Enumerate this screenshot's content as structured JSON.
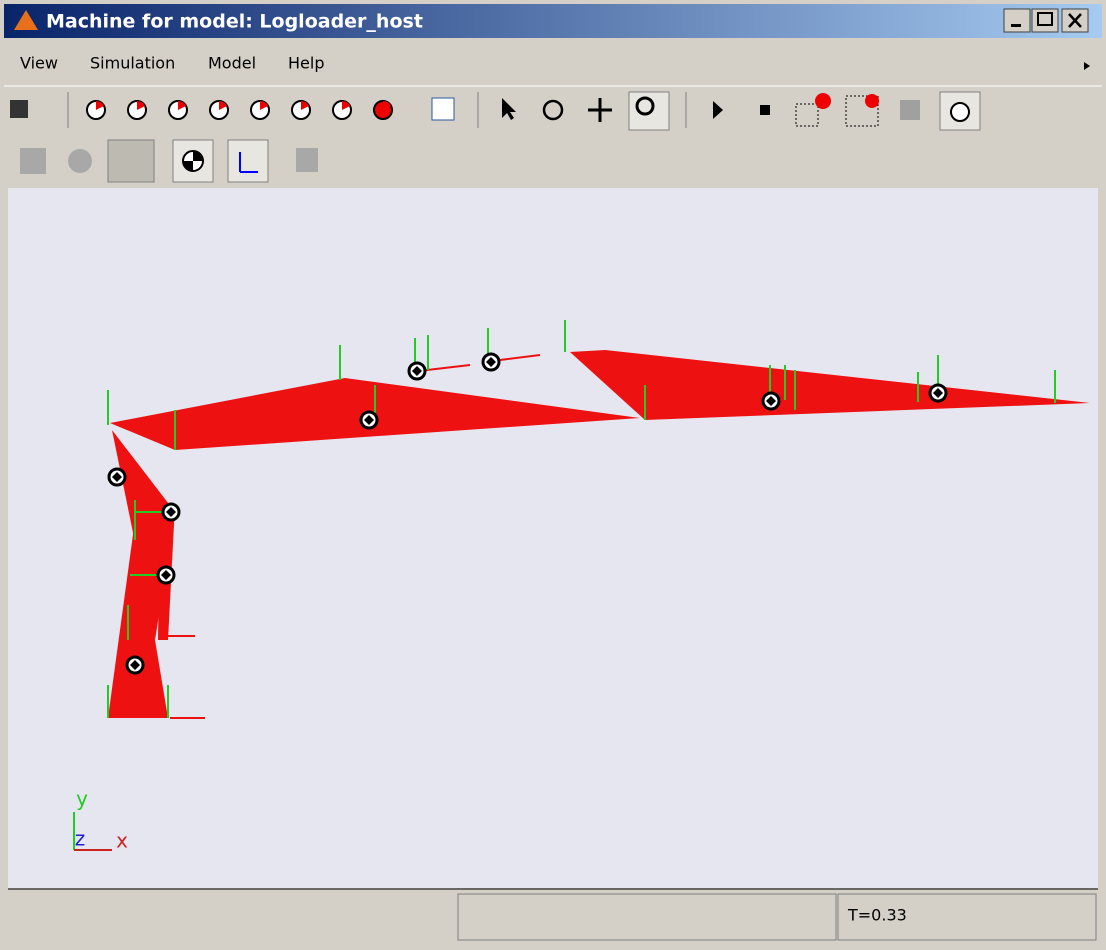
{
  "window": {
    "title": "Machine for model: Logloader_host"
  },
  "menu": [
    "View",
    "Simulation",
    "Model",
    "Help"
  ],
  "axes": {
    "y": "y",
    "z": "z",
    "x": "x"
  },
  "status": {
    "time": "T=0.33"
  }
}
